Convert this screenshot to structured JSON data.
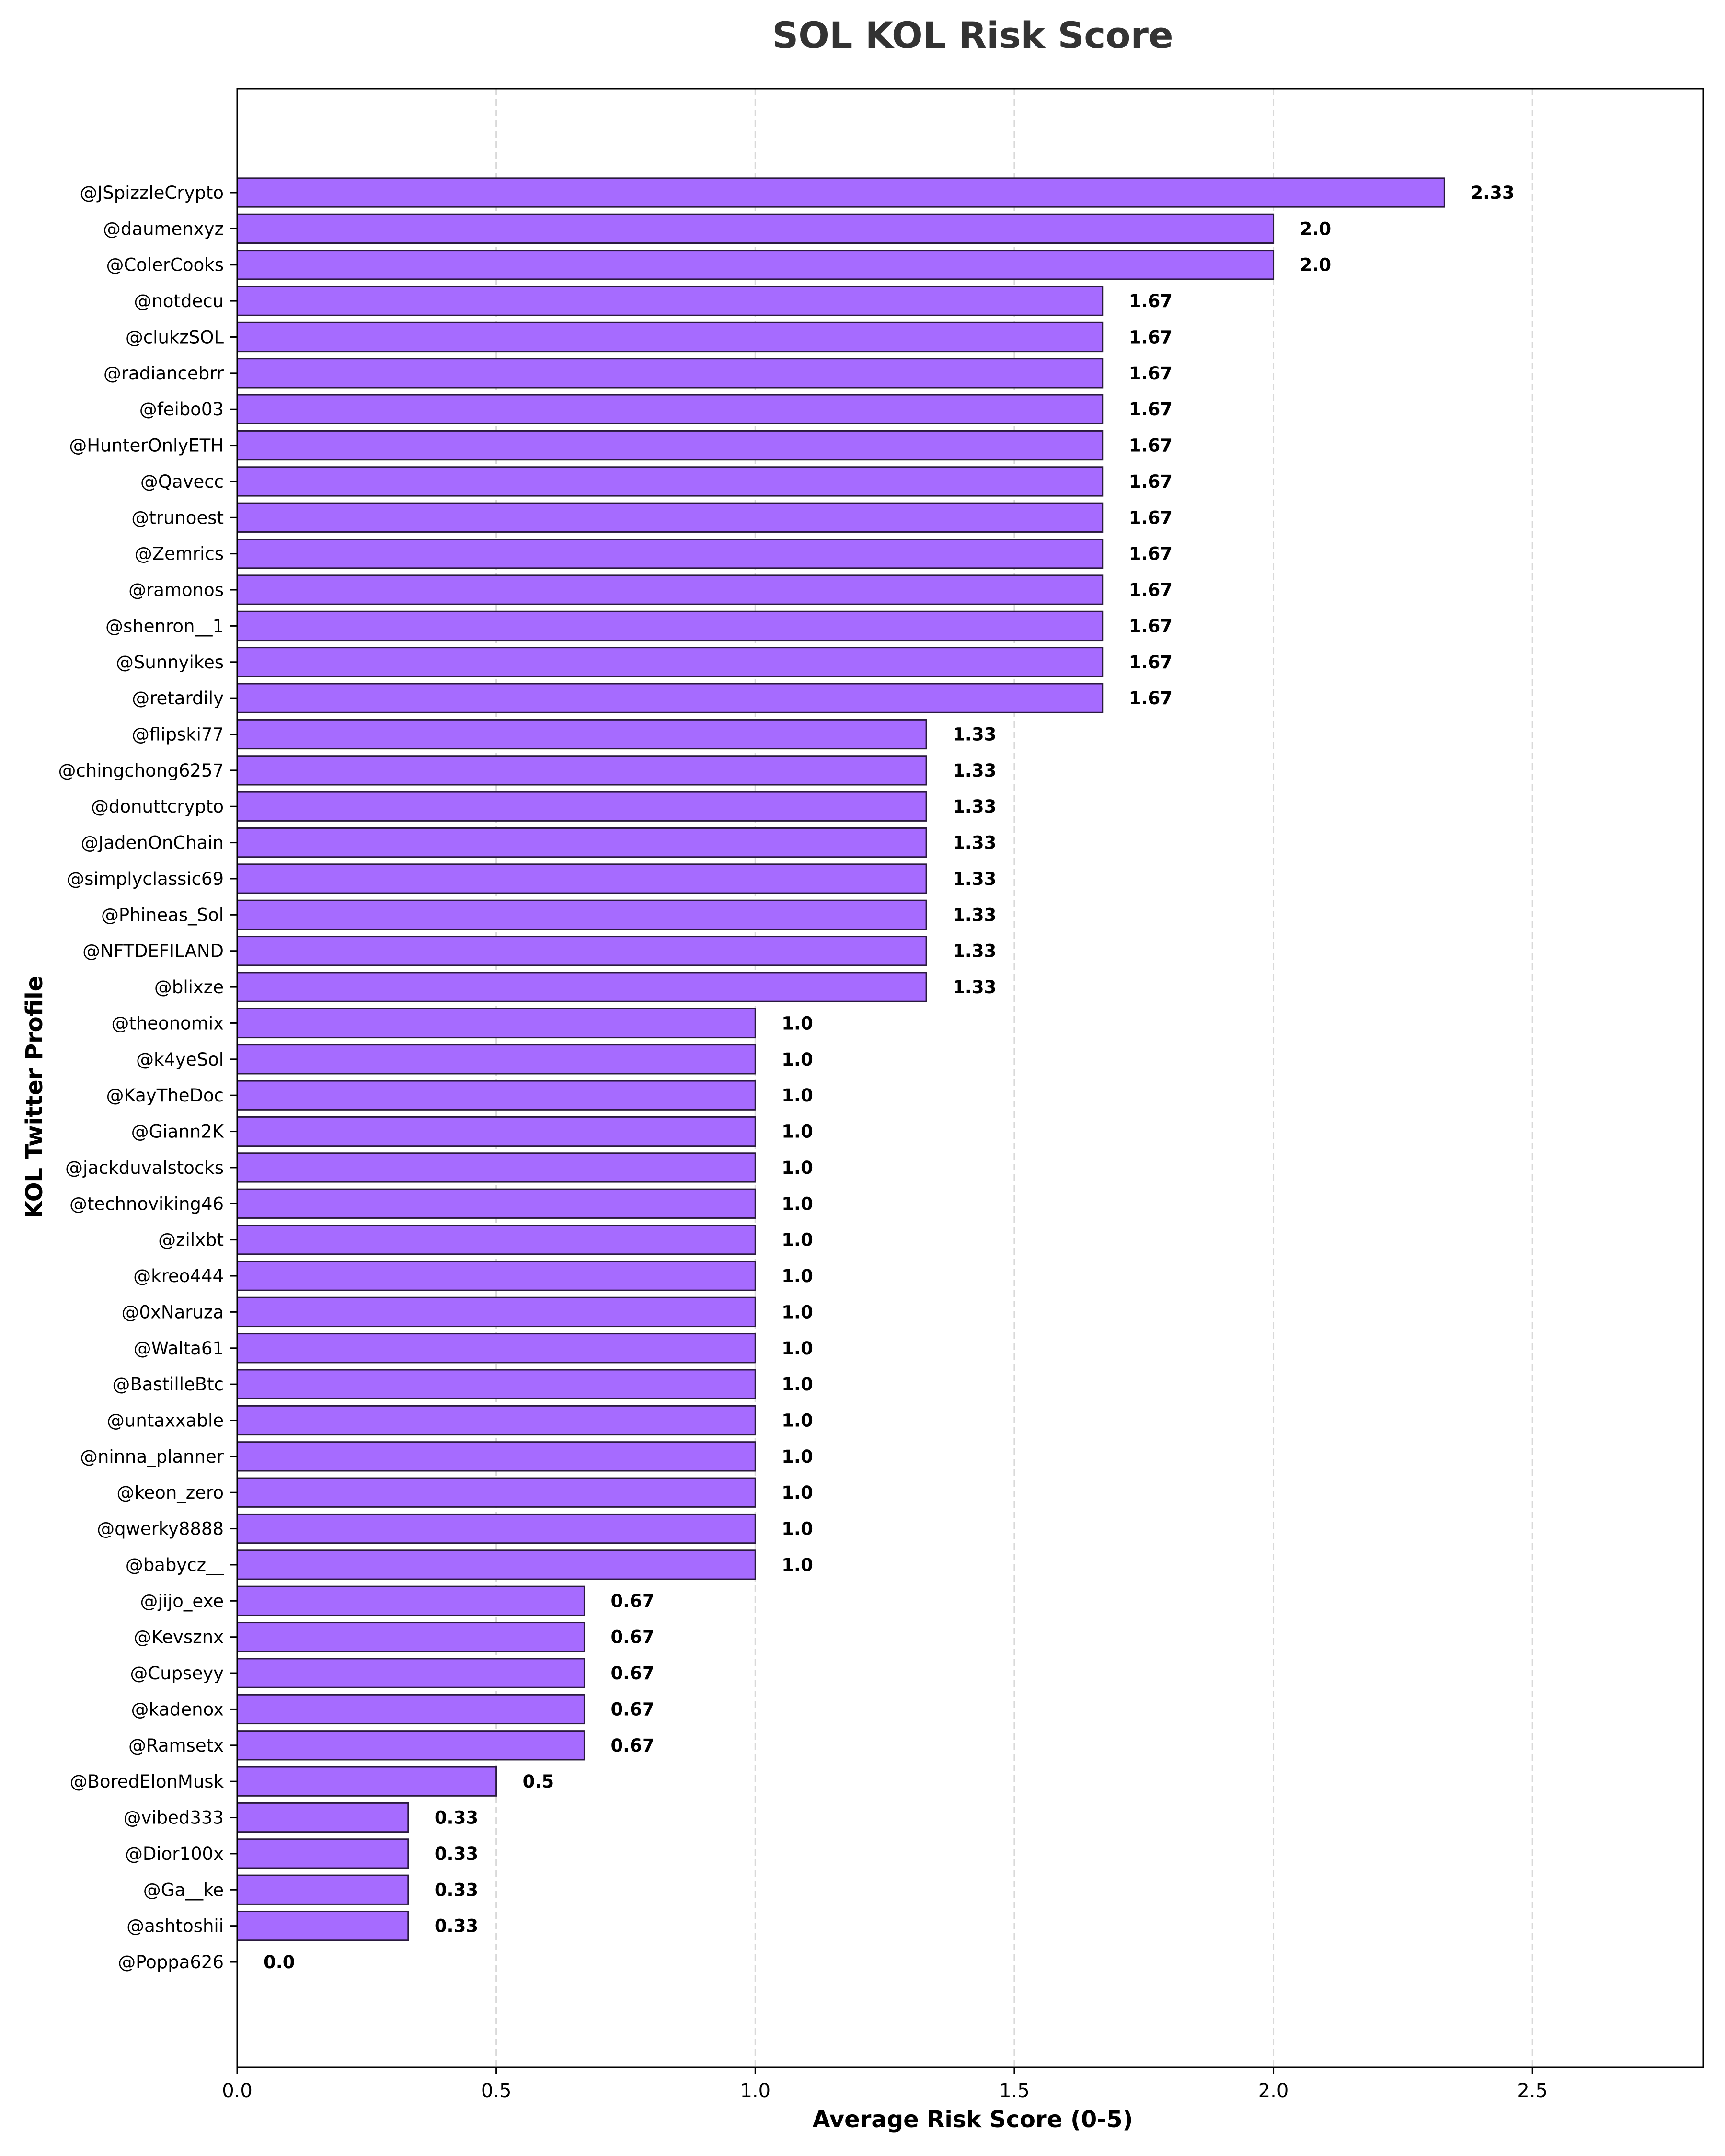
{
  "chart_data": {
    "type": "bar",
    "orientation": "horizontal",
    "title": "SOL KOL Risk Score",
    "xlabel": "Average Risk Score (0-5)",
    "ylabel": "KOL Twitter Profile",
    "xlim": [
      0,
      2.83
    ],
    "xticks": [
      "0.0",
      "0.5",
      "1.0",
      "1.5",
      "2.0",
      "2.5"
    ],
    "grid": "x-dashed",
    "bar_color": "#a66bff",
    "edge_color": "#2a1a3e",
    "categories": [
      "@JSpizzleCrypto",
      "@daumenxyz",
      "@ColerCooks",
      "@notdecu",
      "@clukzSOL",
      "@radiancebrr",
      "@feibo03",
      "@HunterOnlyETH",
      "@Qavecc",
      "@trunoest",
      "@Zemrics",
      "@ramonos",
      "@shenron__1",
      "@Sunnyikes",
      "@retardily",
      "@flipski77",
      "@chingchong6257",
      "@donuttcrypto",
      "@JadenOnChain",
      "@simplyclassic69",
      "@Phineas_Sol",
      "@NFTDEFILAND",
      "@blixze",
      "@theonomix",
      "@k4yeSol",
      "@KayTheDoc",
      "@Giann2K",
      "@jackduvalstocks",
      "@technoviking46",
      "@zilxbt",
      "@kreo444",
      "@0xNaruza",
      "@Walta61",
      "@BastilleBtc",
      "@untaxxable",
      "@ninna_planner",
      "@keon_zero",
      "@qwerky8888",
      "@babycz__",
      "@jijo_exe",
      "@Kevsznx",
      "@Cupseyy",
      "@kadenox",
      "@Ramsetx",
      "@BoredElonMusk",
      "@vibed333",
      "@Dior100x",
      "@Ga__ke",
      "@ashtoshii",
      "@Poppa626"
    ],
    "values": [
      2.33,
      2.0,
      2.0,
      1.67,
      1.67,
      1.67,
      1.67,
      1.67,
      1.67,
      1.67,
      1.67,
      1.67,
      1.67,
      1.67,
      1.67,
      1.33,
      1.33,
      1.33,
      1.33,
      1.33,
      1.33,
      1.33,
      1.33,
      1.0,
      1.0,
      1.0,
      1.0,
      1.0,
      1.0,
      1.0,
      1.0,
      1.0,
      1.0,
      1.0,
      1.0,
      1.0,
      1.0,
      1.0,
      1.0,
      0.67,
      0.67,
      0.67,
      0.67,
      0.67,
      0.5,
      0.33,
      0.33,
      0.33,
      0.33,
      0.0
    ],
    "value_labels": [
      "2.33",
      "2.0",
      "2.0",
      "1.67",
      "1.67",
      "1.67",
      "1.67",
      "1.67",
      "1.67",
      "1.67",
      "1.67",
      "1.67",
      "1.67",
      "1.67",
      "1.67",
      "1.33",
      "1.33",
      "1.33",
      "1.33",
      "1.33",
      "1.33",
      "1.33",
      "1.33",
      "1.0",
      "1.0",
      "1.0",
      "1.0",
      "1.0",
      "1.0",
      "1.0",
      "1.0",
      "1.0",
      "1.0",
      "1.0",
      "1.0",
      "1.0",
      "1.0",
      "1.0",
      "1.0",
      "0.67",
      "0.67",
      "0.67",
      "0.67",
      "0.67",
      "0.5",
      "0.33",
      "0.33",
      "0.33",
      "0.33",
      "0.0"
    ]
  }
}
